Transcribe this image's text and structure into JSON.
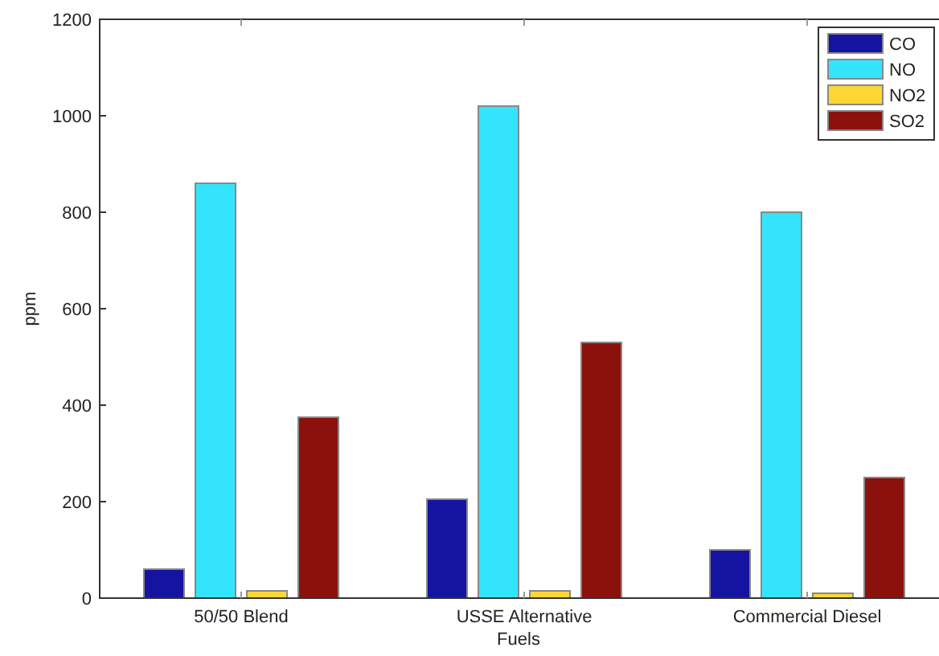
{
  "chart_data": {
    "type": "bar",
    "xlabel": "Fuels",
    "ylabel": "ppm",
    "categories": [
      "50/50 Blend",
      "USSE Alternative",
      "Commercial Diesel"
    ],
    "series": [
      {
        "name": "CO",
        "color": "#1414a0",
        "values": [
          60,
          205,
          100
        ]
      },
      {
        "name": "NO",
        "color": "#33e4fc",
        "values": [
          860,
          1020,
          800
        ]
      },
      {
        "name": "NO2",
        "color": "#fcd635",
        "values": [
          15,
          15,
          10
        ]
      },
      {
        "name": "SO2",
        "color": "#8b110d",
        "values": [
          375,
          530,
          250
        ]
      }
    ],
    "ylim": [
      0,
      1200
    ],
    "yticks": [
      0,
      200,
      400,
      600,
      800,
      1000,
      1200
    ],
    "grid": false,
    "legend": "top right"
  }
}
